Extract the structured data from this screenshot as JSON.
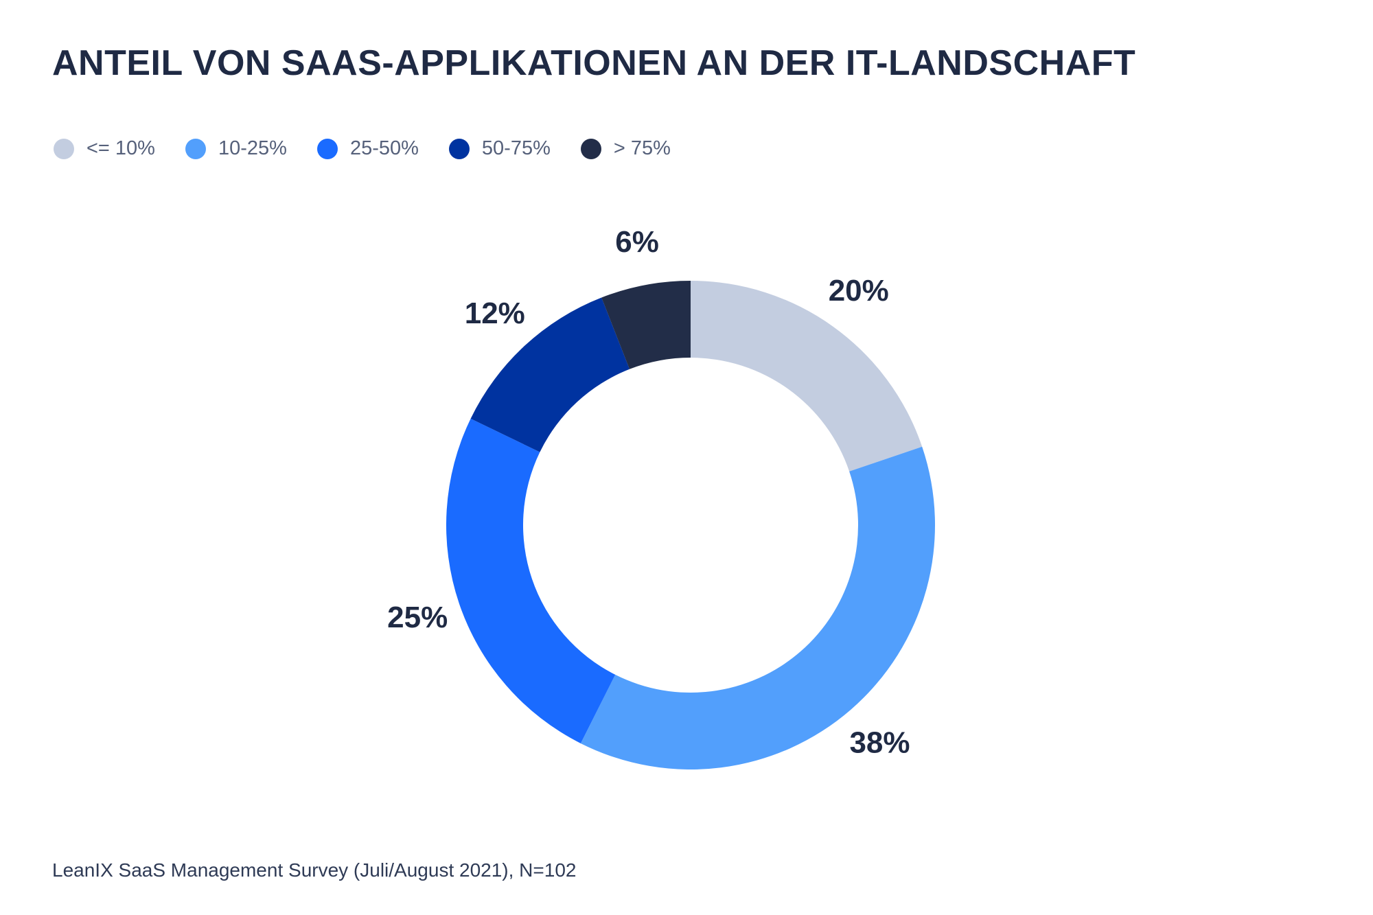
{
  "chart_data": {
    "type": "pie",
    "title": "ANTEIL VON SAAS-APPLIKATIONEN AN DER IT-LANDSCHAFT",
    "legend_position": "top-left",
    "categories": [
      "<= 10%",
      "10-25%",
      "25-50%",
      "50-75%",
      "> 75%"
    ],
    "values": [
      20,
      38,
      25,
      12,
      6
    ],
    "value_labels": [
      "20%",
      "38%",
      "25%",
      "12%",
      "6%"
    ],
    "colors": [
      "#c3cde0",
      "#529ffc",
      "#1a6bff",
      "#0033a0",
      "#222d48"
    ],
    "donut": true,
    "source": "LeanIX SaaS Management Survey (Juli/August 2021), N=102"
  }
}
